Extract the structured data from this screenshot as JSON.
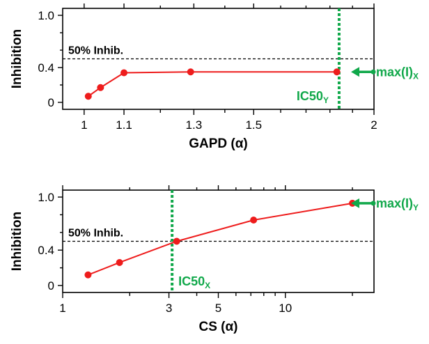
{
  "colors": {
    "series": "#ee1c1c",
    "marker": "#ee1c1c",
    "highlight": "#10a84a",
    "reference": "#000000"
  },
  "chart_data": [
    {
      "type": "line",
      "xlabel": "GAPD (α)",
      "ylabel": "Inhibition",
      "xscale": "log",
      "xlim": [
        0.95,
        2.0
      ],
      "ylim": [
        -0.1,
        1.1
      ],
      "xticks": [
        "1",
        "1.1",
        "1.3",
        "1.5",
        "2"
      ],
      "yticks": [
        "0",
        "0.4",
        "1.0"
      ],
      "series": [
        {
          "x": [
            1.01,
            1.04,
            1.1,
            1.29,
            1.83
          ],
          "y": [
            0.07,
            0.17,
            0.34,
            0.35,
            0.35
          ]
        }
      ],
      "reference_line": {
        "y": 0.5,
        "label": "50% Inhib."
      },
      "vertical_marker": {
        "x": 1.84,
        "label_main": "IC50",
        "label_sub": "Y"
      },
      "arrow_label": {
        "main": "max(I)",
        "sub": "X",
        "y": 0.35
      }
    },
    {
      "type": "line",
      "xlabel": "CS (α)",
      "ylabel": "Inhibition",
      "xscale": "log",
      "xlim": [
        1.0,
        25.0
      ],
      "ylim": [
        -0.1,
        1.1
      ],
      "xticks": [
        "1",
        "3",
        "5",
        "10"
      ],
      "yticks": [
        "0",
        "0.4",
        "1.0"
      ],
      "series": [
        {
          "x": [
            1.3,
            1.8,
            3.25,
            7.2,
            20.0
          ],
          "y": [
            0.12,
            0.26,
            0.5,
            0.74,
            0.93
          ]
        }
      ],
      "reference_line": {
        "y": 0.5,
        "label": "50% Inhib."
      },
      "vertical_marker": {
        "x": 3.1,
        "label_main": "IC50",
        "label_sub": "X"
      },
      "arrow_label": {
        "main": "max(I)",
        "sub": "Y",
        "y": 0.93
      }
    }
  ]
}
